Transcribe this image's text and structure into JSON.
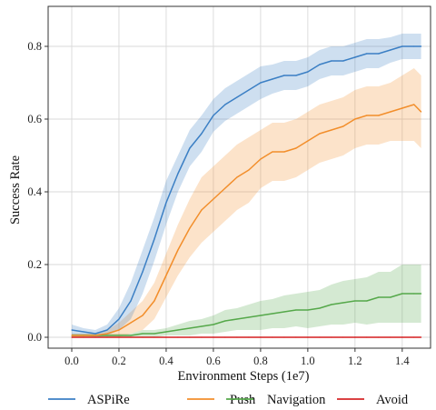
{
  "chart_data": {
    "type": "line",
    "xlabel": "Environment Steps (1e7)",
    "ylabel": "Success Rate",
    "xlim": [
      -0.1,
      1.52
    ],
    "ylim": [
      -0.03,
      0.91
    ],
    "xticks": [
      "0.0",
      "0.2",
      "0.4",
      "0.6",
      "0.8",
      "1.0",
      "1.2",
      "1.4"
    ],
    "yticks": [
      "0.0",
      "0.2",
      "0.4",
      "0.6",
      "0.8"
    ],
    "grid": true,
    "legend_position": "bottom",
    "x": [
      0.0,
      0.05,
      0.1,
      0.15,
      0.2,
      0.25,
      0.3,
      0.35,
      0.4,
      0.45,
      0.5,
      0.55,
      0.6,
      0.65,
      0.7,
      0.75,
      0.8,
      0.85,
      0.9,
      0.95,
      1.0,
      1.05,
      1.1,
      1.15,
      1.2,
      1.25,
      1.3,
      1.35,
      1.4,
      1.45,
      1.48
    ],
    "series": [
      {
        "name": "ASPiRe",
        "color": "#3b7fc4",
        "values": [
          0.02,
          0.015,
          0.01,
          0.02,
          0.05,
          0.1,
          0.18,
          0.27,
          0.37,
          0.45,
          0.52,
          0.56,
          0.61,
          0.64,
          0.66,
          0.68,
          0.7,
          0.71,
          0.72,
          0.72,
          0.73,
          0.75,
          0.76,
          0.76,
          0.77,
          0.78,
          0.78,
          0.79,
          0.8,
          0.8,
          0.8
        ],
        "band": [
          0.015,
          0.01,
          0.01,
          0.015,
          0.03,
          0.05,
          0.06,
          0.06,
          0.06,
          0.05,
          0.05,
          0.05,
          0.045,
          0.045,
          0.045,
          0.045,
          0.045,
          0.04,
          0.04,
          0.04,
          0.04,
          0.04,
          0.04,
          0.04,
          0.04,
          0.04,
          0.04,
          0.035,
          0.035,
          0.035,
          0.035
        ]
      },
      {
        "name": "Push",
        "color": "#f28e2b",
        "values": [
          0.005,
          0.005,
          0.005,
          0.01,
          0.02,
          0.04,
          0.06,
          0.1,
          0.17,
          0.24,
          0.3,
          0.35,
          0.38,
          0.41,
          0.44,
          0.46,
          0.49,
          0.51,
          0.51,
          0.52,
          0.54,
          0.56,
          0.57,
          0.58,
          0.6,
          0.61,
          0.61,
          0.62,
          0.63,
          0.64,
          0.62
        ],
        "band": [
          0.005,
          0.005,
          0.005,
          0.01,
          0.02,
          0.03,
          0.04,
          0.05,
          0.06,
          0.07,
          0.08,
          0.09,
          0.09,
          0.09,
          0.09,
          0.09,
          0.08,
          0.08,
          0.08,
          0.08,
          0.08,
          0.08,
          0.08,
          0.08,
          0.08,
          0.08,
          0.08,
          0.08,
          0.09,
          0.1,
          0.1
        ]
      },
      {
        "name": "Navigation",
        "color": "#55a84a",
        "values": [
          0.005,
          0.005,
          0.005,
          0.005,
          0.005,
          0.005,
          0.01,
          0.01,
          0.015,
          0.02,
          0.025,
          0.03,
          0.035,
          0.045,
          0.05,
          0.055,
          0.06,
          0.065,
          0.07,
          0.075,
          0.075,
          0.08,
          0.09,
          0.095,
          0.1,
          0.1,
          0.11,
          0.11,
          0.12,
          0.12,
          0.12
        ],
        "band": [
          0.005,
          0.005,
          0.005,
          0.005,
          0.005,
          0.005,
          0.01,
          0.01,
          0.01,
          0.015,
          0.02,
          0.02,
          0.025,
          0.03,
          0.03,
          0.035,
          0.04,
          0.04,
          0.045,
          0.045,
          0.05,
          0.05,
          0.055,
          0.06,
          0.06,
          0.065,
          0.07,
          0.07,
          0.08,
          0.08,
          0.08
        ]
      },
      {
        "name": "Avoid",
        "color": "#d62728",
        "values": [
          0.0,
          0.0,
          0.0,
          0.0,
          0.0,
          0.0,
          0.0,
          0.0,
          0.0,
          0.0,
          0.0,
          0.0,
          0.0,
          0.0,
          0.0,
          0.0,
          0.0,
          0.0,
          0.0,
          0.0,
          0.0,
          0.0,
          0.0,
          0.0,
          0.0,
          0.0,
          0.0,
          0.0,
          0.0,
          0.0,
          0.0
        ],
        "band": [
          0.002,
          0.002,
          0.002,
          0.002,
          0.002,
          0.002,
          0.002,
          0.002,
          0.002,
          0.002,
          0.002,
          0.002,
          0.002,
          0.002,
          0.002,
          0.002,
          0.002,
          0.002,
          0.002,
          0.002,
          0.002,
          0.002,
          0.002,
          0.002,
          0.002,
          0.002,
          0.002,
          0.002,
          0.002,
          0.002,
          0.002
        ]
      }
    ]
  }
}
